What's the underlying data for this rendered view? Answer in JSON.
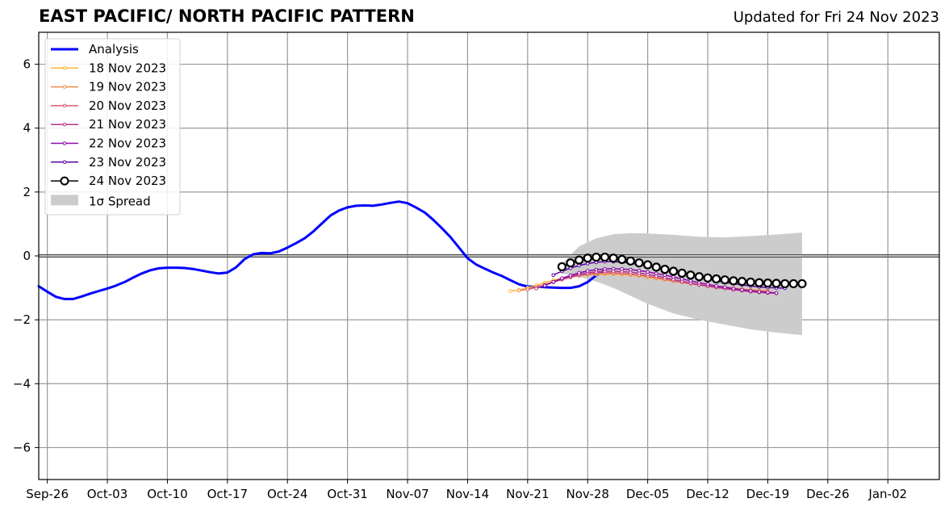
{
  "header": {
    "title": "EAST PACIFIC/ NORTH PACIFIC PATTERN",
    "updated": "Updated for Fri 24 Nov 2023"
  },
  "colors": {
    "analysis": "#0000ff",
    "spread": "#cccccc",
    "grid": "#999999",
    "zero_line": "#444444"
  },
  "chart_data": {
    "type": "line",
    "title": "EAST PACIFIC/ NORTH PACIFIC PATTERN",
    "xlabel": "",
    "ylabel": "",
    "x_type": "date",
    "xlim": [
      "2023-09-25",
      "2024-01-08"
    ],
    "ylim": [
      -7,
      7
    ],
    "grid": true,
    "legend_position": "top-left",
    "xticks": [
      {
        "date": "2023-09-26",
        "label": "Sep-26"
      },
      {
        "date": "2023-10-03",
        "label": "Oct-03"
      },
      {
        "date": "2023-10-10",
        "label": "Oct-10"
      },
      {
        "date": "2023-10-17",
        "label": "Oct-17"
      },
      {
        "date": "2023-10-24",
        "label": "Oct-24"
      },
      {
        "date": "2023-10-31",
        "label": "Oct-31"
      },
      {
        "date": "2023-11-07",
        "label": "Nov-07"
      },
      {
        "date": "2023-11-14",
        "label": "Nov-14"
      },
      {
        "date": "2023-11-21",
        "label": "Nov-21"
      },
      {
        "date": "2023-11-28",
        "label": "Nov-28"
      },
      {
        "date": "2023-12-05",
        "label": "Dec-05"
      },
      {
        "date": "2023-12-12",
        "label": "Dec-12"
      },
      {
        "date": "2023-12-19",
        "label": "Dec-19"
      },
      {
        "date": "2023-12-26",
        "label": "Dec-26"
      },
      {
        "date": "2024-01-02",
        "label": "Jan-02"
      }
    ],
    "yticks": [
      {
        "value": 6,
        "label": "6"
      },
      {
        "value": 4,
        "label": "4"
      },
      {
        "value": 2,
        "label": "2"
      },
      {
        "value": 0,
        "label": "0"
      },
      {
        "value": -2,
        "label": "−2"
      },
      {
        "value": -4,
        "label": "−4"
      },
      {
        "value": -6,
        "label": "−6"
      }
    ],
    "analysis": {
      "name": "Analysis",
      "color": "#0000ff",
      "start_date": "2023-09-25",
      "values": [
        -0.95,
        -1.12,
        -1.28,
        -1.35,
        -1.35,
        -1.27,
        -1.18,
        -1.1,
        -1.02,
        -0.93,
        -0.82,
        -0.68,
        -0.55,
        -0.45,
        -0.39,
        -0.37,
        -0.37,
        -0.38,
        -0.41,
        -0.46,
        -0.51,
        -0.55,
        -0.52,
        -0.36,
        -0.1,
        0.05,
        0.09,
        0.08,
        0.14,
        0.26,
        0.4,
        0.55,
        0.76,
        1.01,
        1.26,
        1.42,
        1.52,
        1.57,
        1.58,
        1.57,
        1.61,
        1.66,
        1.7,
        1.65,
        1.51,
        1.36,
        1.13,
        0.87,
        0.59,
        0.26,
        -0.07,
        -0.27,
        -0.4,
        -0.52,
        -0.63,
        -0.76,
        -0.89,
        -0.96,
        -0.96,
        -0.98,
        -0.99,
        -1.0,
        -1.0,
        -0.95,
        -0.82,
        -0.61,
        -0.45
      ]
    },
    "forecasts": [
      {
        "name": "18 Nov 2023",
        "color": "#fdb42f",
        "start_date": "2023-11-19",
        "values": [
          -1.1,
          -1.07,
          -1.0,
          -0.92,
          -0.84,
          -0.76,
          -0.7,
          -0.65,
          -0.62,
          -0.59,
          -0.58,
          -0.57,
          -0.57,
          -0.58,
          -0.6,
          -0.63,
          -0.67,
          -0.71,
          -0.75,
          -0.79,
          -0.83,
          -0.87,
          -0.9,
          -0.94,
          -0.97,
          -1.0,
          -1.03,
          -1.05,
          -1.07,
          -1.08,
          -1.08
        ]
      },
      {
        "name": "19 Nov 2023",
        "color": "#f48849",
        "start_date": "2023-11-20",
        "values": [
          -1.08,
          -1.05,
          -0.98,
          -0.9,
          -0.82,
          -0.74,
          -0.67,
          -0.62,
          -0.58,
          -0.56,
          -0.55,
          -0.55,
          -0.56,
          -0.58,
          -0.61,
          -0.65,
          -0.69,
          -0.73,
          -0.77,
          -0.81,
          -0.85,
          -0.89,
          -0.92,
          -0.95,
          -0.98,
          -1.01,
          -1.04,
          -1.06,
          -1.08,
          -1.09
        ]
      },
      {
        "name": "20 Nov 2023",
        "color": "#db5c68",
        "start_date": "2023-11-21",
        "values": [
          -1.05,
          -0.98,
          -0.9,
          -0.82,
          -0.74,
          -0.67,
          -0.61,
          -0.57,
          -0.54,
          -0.53,
          -0.53,
          -0.54,
          -0.57,
          -0.6,
          -0.64,
          -0.68,
          -0.73,
          -0.78,
          -0.83,
          -0.87,
          -0.91,
          -0.95,
          -0.99,
          -1.02,
          -1.05,
          -1.08,
          -1.1,
          -1.12,
          -1.13
        ]
      },
      {
        "name": "21 Nov 2023",
        "color": "#b83289",
        "start_date": "2023-11-22",
        "values": [
          -1.02,
          -0.92,
          -0.82,
          -0.73,
          -0.65,
          -0.58,
          -0.53,
          -0.5,
          -0.48,
          -0.48,
          -0.49,
          -0.51,
          -0.54,
          -0.58,
          -0.63,
          -0.68,
          -0.74,
          -0.79,
          -0.85,
          -0.9,
          -0.94,
          -0.98,
          -1.02,
          -1.06,
          -1.09,
          -1.12,
          -1.14,
          -1.16,
          -1.17
        ]
      },
      {
        "name": "22 Nov 2023",
        "color": "#8b0aa5",
        "start_date": "2023-11-23",
        "values": [
          -0.93,
          -0.81,
          -0.7,
          -0.61,
          -0.53,
          -0.47,
          -0.43,
          -0.41,
          -0.4,
          -0.41,
          -0.43,
          -0.46,
          -0.5,
          -0.55,
          -0.6,
          -0.66,
          -0.72,
          -0.78,
          -0.84,
          -0.89,
          -0.94,
          -0.98,
          -1.02,
          -1.06,
          -1.09,
          -1.12,
          -1.14,
          -1.16
        ]
      },
      {
        "name": "23 Nov 2023",
        "color": "#5b02a3",
        "start_date": "2023-11-24",
        "values": [
          -0.6,
          -0.48,
          -0.38,
          -0.3,
          -0.24,
          -0.2,
          -0.18,
          -0.18,
          -0.2,
          -0.23,
          -0.27,
          -0.32,
          -0.38,
          -0.44,
          -0.5,
          -0.56,
          -0.62,
          -0.68,
          -0.73,
          -0.78,
          -0.83,
          -0.87,
          -0.91,
          -0.94,
          -0.97,
          -0.99,
          -1.0,
          -1.01
        ]
      },
      {
        "name": "24 Nov 2023",
        "color": "#000000",
        "start_date": "2023-11-25",
        "values": [
          -0.34,
          -0.22,
          -0.13,
          -0.07,
          -0.04,
          -0.04,
          -0.07,
          -0.11,
          -0.16,
          -0.22,
          -0.28,
          -0.35,
          -0.42,
          -0.48,
          -0.54,
          -0.6,
          -0.65,
          -0.69,
          -0.72,
          -0.75,
          -0.78,
          -0.8,
          -0.82,
          -0.84,
          -0.85,
          -0.86,
          -0.87,
          -0.87,
          -0.87
        ]
      }
    ],
    "spread": {
      "name": "1σ Spread",
      "color": "#cccccc",
      "dates": [
        "2023-11-25",
        "2023-11-27",
        "2023-11-29",
        "2023-12-01",
        "2023-12-03",
        "2023-12-05",
        "2023-12-08",
        "2023-12-11",
        "2023-12-14",
        "2023-12-17",
        "2023-12-20",
        "2023-12-23"
      ],
      "upper": [
        -0.25,
        0.3,
        0.55,
        0.68,
        0.71,
        0.7,
        0.66,
        0.6,
        0.58,
        0.62,
        0.67,
        0.73
      ],
      "lower": [
        -0.55,
        -0.65,
        -0.8,
        -1.0,
        -1.25,
        -1.5,
        -1.8,
        -2.0,
        -2.15,
        -2.3,
        -2.4,
        -2.48
      ]
    }
  }
}
